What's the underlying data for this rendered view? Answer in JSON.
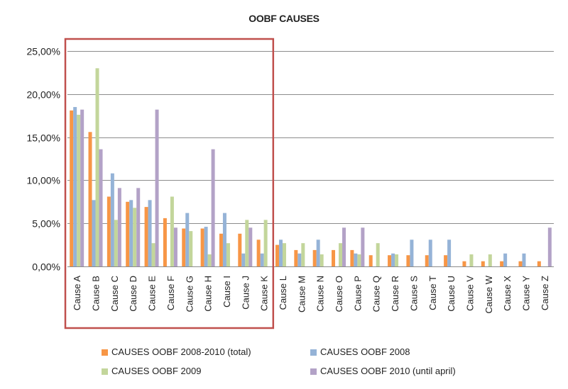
{
  "chart_data": {
    "type": "bar",
    "title": "OOBF CAUSES",
    "xlabel": "",
    "ylabel": "",
    "ylim": [
      0,
      25
    ],
    "y_ticks": [
      "0,00%",
      "5,00%",
      "10,00%",
      "15,00%",
      "20,00%",
      "25,00%"
    ],
    "y_tick_values": [
      0,
      5,
      10,
      15,
      20,
      25
    ],
    "grid": true,
    "legend_position": "bottom",
    "categories": [
      "Cause A",
      "Cause B",
      "Cause C",
      "Cause D",
      "Cause E",
      "Cause F",
      "Cause G",
      "Cause H",
      "Cause I",
      "Cause J",
      "Cause K",
      "Cause L",
      "Cause M",
      "Cause N",
      "Cause O",
      "Cause P",
      "Cause Q",
      "Cause R",
      "Cause S",
      "Cause T",
      "Cause U",
      "Cause V",
      "Cause W",
      "Cause X",
      "Cause Y",
      "Cause Z"
    ],
    "series": [
      {
        "name": "CAUSES OOBF 2008-2010 (total)",
        "color": "#f79646",
        "values": [
          18.1,
          15.6,
          8.1,
          7.5,
          6.9,
          5.6,
          4.4,
          4.4,
          3.8,
          3.8,
          3.1,
          2.5,
          1.9,
          1.9,
          1.9,
          1.9,
          1.3,
          1.3,
          1.3,
          1.3,
          1.3,
          0.6,
          0.6,
          0.6,
          0.6,
          0.6
        ]
      },
      {
        "name": "CAUSES OOBF 2008",
        "color": "#95b3d7",
        "values": [
          18.5,
          7.7,
          10.8,
          7.7,
          7.7,
          0,
          6.2,
          4.6,
          6.2,
          1.5,
          1.5,
          3.1,
          1.5,
          3.1,
          0,
          1.5,
          0,
          1.5,
          3.1,
          3.1,
          3.1,
          0,
          0,
          1.5,
          1.5,
          0
        ]
      },
      {
        "name": "CAUSES OOBF 2009",
        "color": "#c3d69b",
        "values": [
          17.6,
          23.0,
          5.4,
          6.8,
          2.7,
          8.1,
          4.1,
          1.4,
          2.7,
          5.4,
          5.4,
          2.7,
          2.7,
          1.4,
          2.7,
          1.4,
          2.7,
          1.4,
          0,
          0,
          0,
          1.4,
          1.4,
          0,
          0,
          0
        ]
      },
      {
        "name": "CAUSES OOBF 2010 (until april)",
        "color": "#b3a2c7",
        "values": [
          18.2,
          13.6,
          9.1,
          9.1,
          18.2,
          4.5,
          0,
          13.6,
          0,
          4.5,
          0,
          0,
          0,
          0,
          4.5,
          4.5,
          0,
          0,
          0,
          0,
          0,
          0,
          0,
          0,
          0,
          4.5
        ]
      }
    ],
    "highlight_box": {
      "from": "Cause A",
      "to": "Cause K",
      "color": "#c0504d"
    }
  }
}
